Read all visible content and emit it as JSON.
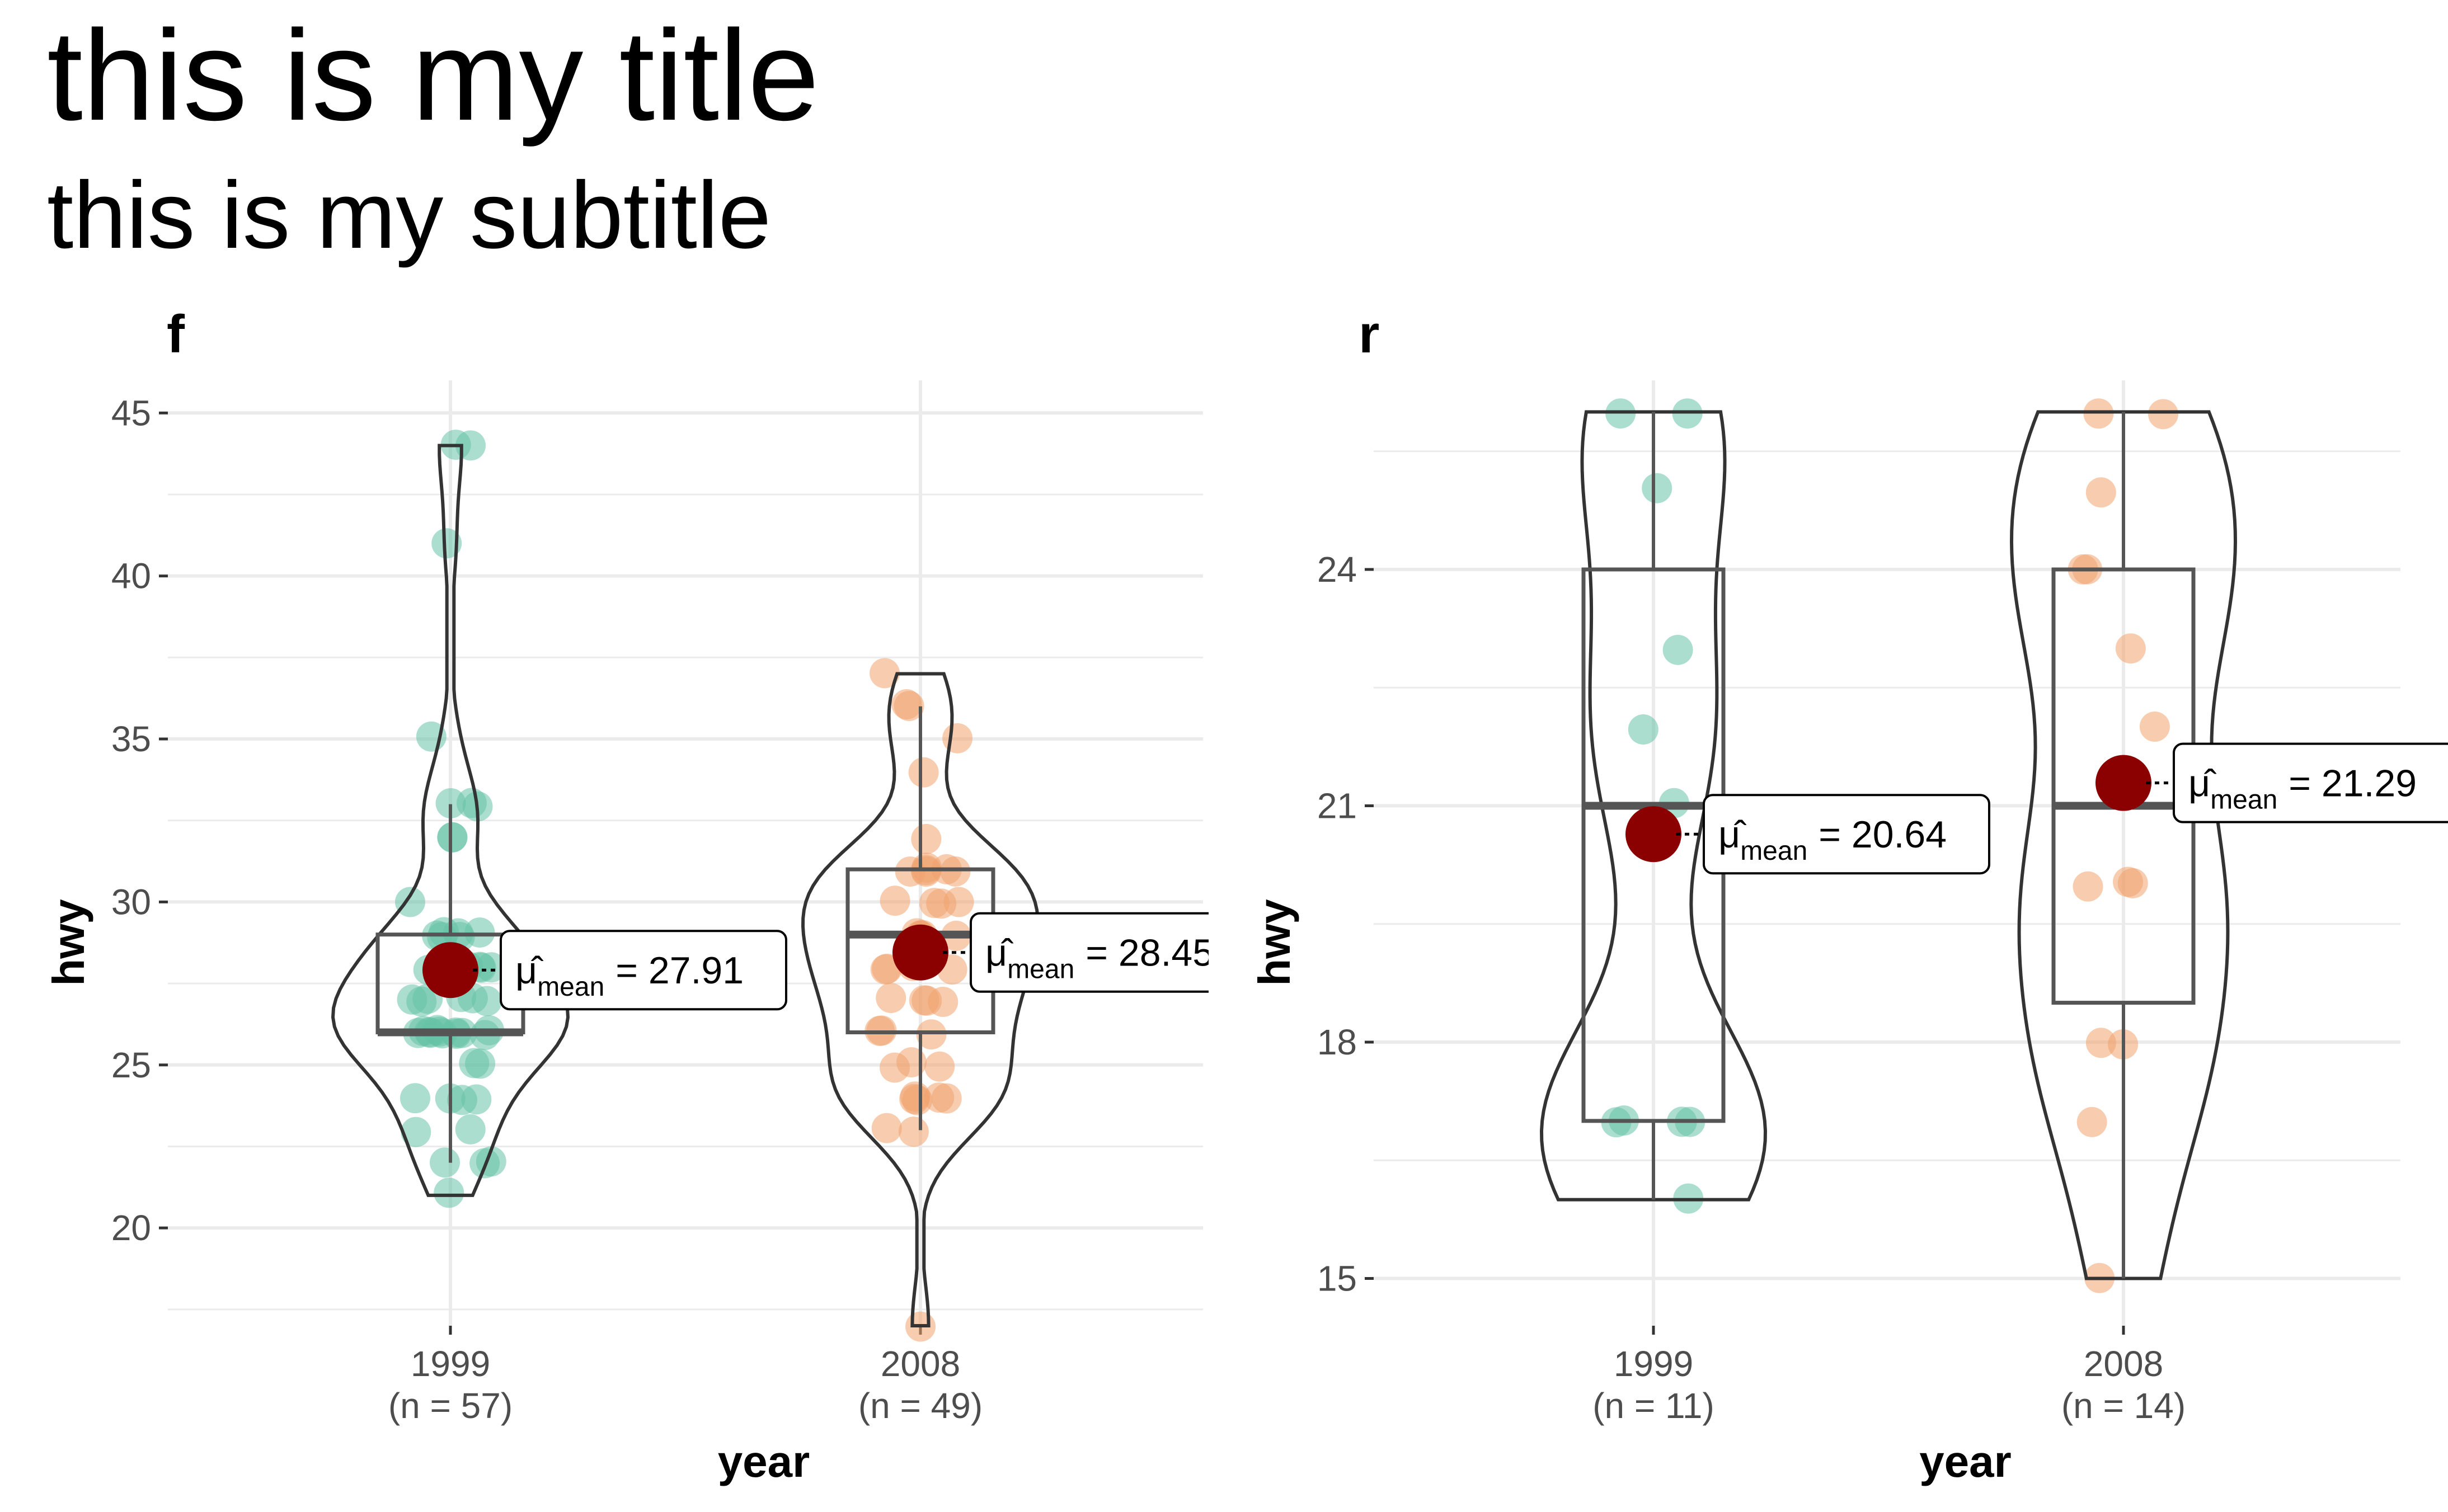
{
  "title": "this is my title",
  "subtitle": "this is my subtitle",
  "colors": {
    "series_1999": "#66C2A5",
    "series_2008": "#F1A26E",
    "mean_point": "#8B0000",
    "grid": "#EBEBEB",
    "outline": "#333333"
  },
  "chart_data": [
    {
      "type": "violin-box-scatter",
      "panel_label": "f",
      "xlabel": "year",
      "ylabel": "hwy",
      "ylim": [
        17,
        46
      ],
      "yticks": [
        20,
        25,
        30,
        35,
        40,
        45
      ],
      "grid": true,
      "categories": [
        "1999",
        "2008"
      ],
      "category_n_labels": [
        "(n = 57)",
        "(n = 49)"
      ],
      "groups": [
        {
          "name": "1999",
          "points": [
            44,
            44,
            41,
            35,
            33,
            33,
            33,
            32,
            32,
            30,
            29,
            29,
            29,
            29,
            29,
            29,
            28,
            28,
            28,
            28,
            28,
            27,
            27,
            27,
            27,
            27,
            27,
            26,
            26,
            26,
            26,
            26,
            26,
            26,
            26,
            26,
            26,
            26,
            26,
            25,
            25,
            24,
            24,
            24,
            24,
            23,
            23,
            22,
            22,
            22,
            21
          ],
          "box": {
            "q1": 26,
            "median": 26,
            "q3": 29,
            "whisker_low": 22,
            "whisker_high": 33
          },
          "violin_range": [
            21,
            44
          ],
          "mean": 27.91,
          "mean_label": "= 27.91"
        },
        {
          "name": "2008",
          "points": [
            37,
            36,
            36,
            35,
            34,
            32,
            31,
            31,
            31,
            31,
            31,
            31,
            30,
            30,
            30,
            30,
            29,
            29,
            29,
            29,
            29,
            28,
            28,
            28,
            28,
            27,
            27,
            27,
            27,
            26,
            26,
            26,
            25,
            25,
            25,
            24,
            24,
            24,
            24,
            24,
            23,
            23,
            17
          ],
          "box": {
            "q1": 26,
            "median": 29,
            "q3": 31,
            "whisker_low": 23,
            "whisker_high": 36
          },
          "violin_range": [
            17,
            37
          ],
          "mean": 28.45,
          "mean_label": "= 28.45"
        }
      ]
    },
    {
      "type": "violin-box-scatter",
      "panel_label": "r",
      "xlabel": "year",
      "ylabel": "hwy",
      "ylim": [
        14.4,
        26.4
      ],
      "yticks": [
        15,
        18,
        21,
        24
      ],
      "grid": true,
      "categories": [
        "1999",
        "2008"
      ],
      "category_n_labels": [
        "(n = 11)",
        "(n = 14)"
      ],
      "groups": [
        {
          "name": "1999",
          "points": [
            26,
            26,
            25,
            23,
            22,
            21,
            17,
            17,
            17,
            17,
            16
          ],
          "box": {
            "q1": 17,
            "median": 21,
            "q3": 24,
            "whisker_low": 16,
            "whisker_high": 26
          },
          "violin_range": [
            16,
            26
          ],
          "mean": 20.64,
          "mean_label": "= 20.64"
        },
        {
          "name": "2008",
          "points": [
            26,
            26,
            25,
            24,
            24,
            23,
            22,
            20,
            20,
            20,
            18,
            18,
            17,
            15
          ],
          "box": {
            "q1": 18.5,
            "median": 21,
            "q3": 24,
            "whisker_low": 15,
            "whisker_high": 26
          },
          "violin_range": [
            15,
            26
          ],
          "mean": 21.29,
          "mean_label": "= 21.29"
        }
      ]
    }
  ]
}
